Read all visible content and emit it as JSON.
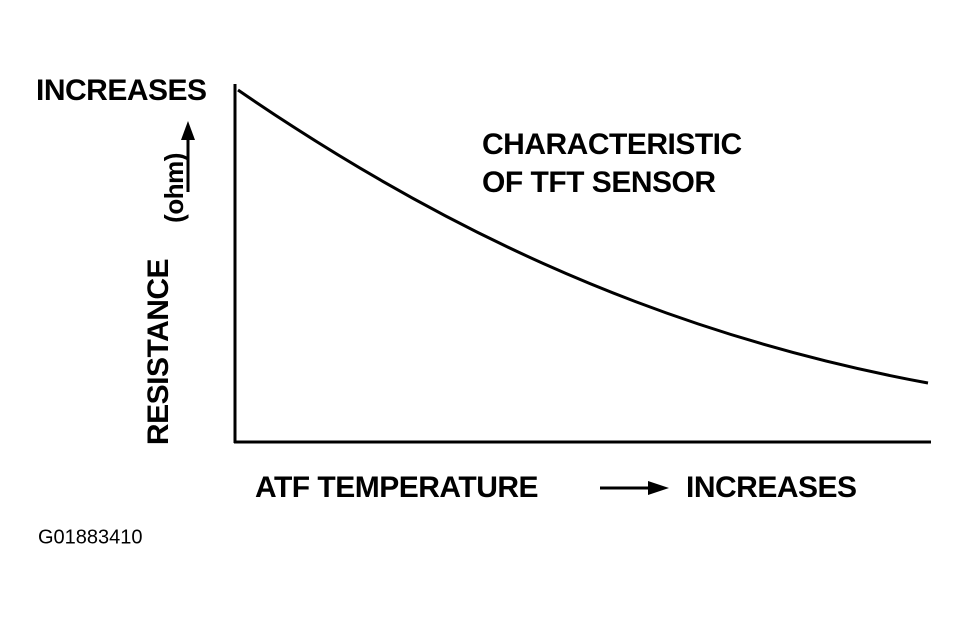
{
  "y_axis": {
    "top_label": "INCREASES",
    "label": "RESISTANCE",
    "unit": "(ohm)"
  },
  "curve_label": {
    "line1": "CHARACTERISTIC",
    "line2": "OF TFT SENSOR"
  },
  "x_axis": {
    "label": "ATF TEMPERATURE",
    "end_label": "INCREASES"
  },
  "figure_id": "G01883410"
}
